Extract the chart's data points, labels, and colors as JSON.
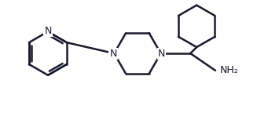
{
  "bg_color": "#ffffff",
  "line_color": "#1a1a2e",
  "line_width": 1.8,
  "fig_width": 3.27,
  "fig_height": 1.53,
  "dpi": 100,
  "nh2_label": "NH₂",
  "n_label": "N"
}
